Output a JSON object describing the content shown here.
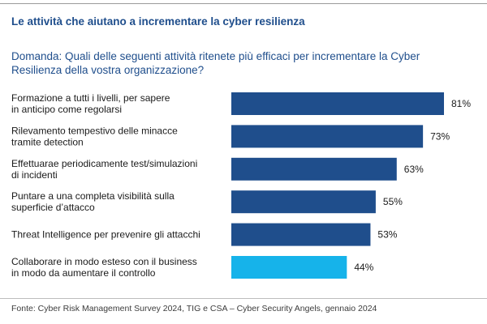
{
  "header": {
    "title": "Le attività che aiutano a incrementare la cyber resilienza",
    "question": "Domanda: Quali delle seguenti attività ritenete più efficaci per incrementare la Cyber Resilienza della vostra organizzazione?"
  },
  "chart_data": {
    "type": "bar",
    "orientation": "horizontal",
    "categories": [
      [
        "Formazione a tutti i livelli, per sapere",
        "in anticipo come regolarsi"
      ],
      [
        "Rilevamento tempestivo delle minacce",
        "tramite detection"
      ],
      [
        "Effettuarae periodicamente test/simulazioni",
        "di incidenti"
      ],
      [
        "Puntare a una completa visibilità sulla",
        "superficie d’attacco"
      ],
      [
        "Threat Intelligence per prevenire gli attacchi"
      ],
      [
        "Collaborare in modo esteso con il business",
        "in modo da aumentare il controllo"
      ]
    ],
    "values": [
      81,
      73,
      63,
      55,
      53,
      44
    ],
    "value_labels": [
      "81%",
      "73%",
      "63%",
      "55%",
      "53%",
      "44%"
    ],
    "unit": "%",
    "colors": [
      "#1f4e8c",
      "#1f4e8c",
      "#1f4e8c",
      "#1f4e8c",
      "#1f4e8c",
      "#16b3ea"
    ],
    "grid": false,
    "legend": "none"
  },
  "footer": {
    "source": "Fonte: Cyber Risk Management Survey 2024, TIG e CSA – Cyber Security Angels, gennaio 2024"
  }
}
